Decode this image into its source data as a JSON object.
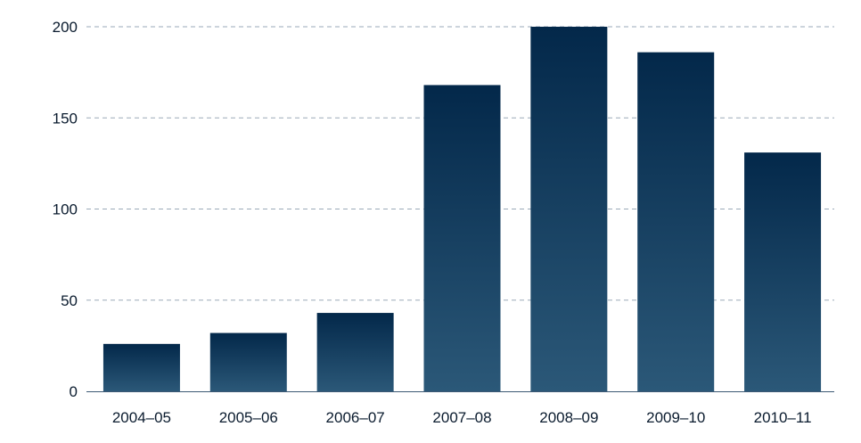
{
  "colors": {
    "bar_top": "#03284a",
    "bar_bottom": "#2b5878",
    "grid": "#9aa9b8",
    "axis": "#3d5a75",
    "text": "#0a1b2e"
  },
  "chart_data": {
    "type": "bar",
    "title": "",
    "xlabel": "",
    "ylabel": "",
    "categories": [
      "2004–05",
      "2005–06",
      "2006–07",
      "2007–08",
      "2008–09",
      "2009–10",
      "2010–11"
    ],
    "values": [
      26,
      32,
      43,
      168,
      200,
      186,
      131
    ],
    "ylim": [
      0,
      200
    ],
    "yticks": [
      "0",
      "50",
      "100",
      "150",
      "200"
    ],
    "ytick_values": [
      0,
      50,
      100,
      150,
      200
    ],
    "grid": true,
    "grid_style": "dashed"
  }
}
